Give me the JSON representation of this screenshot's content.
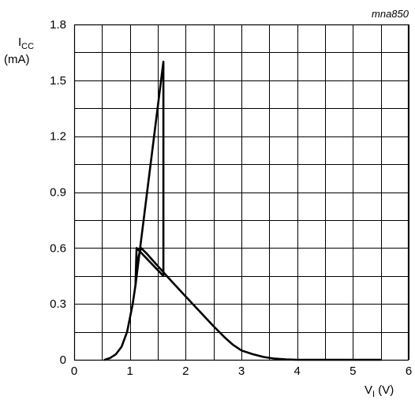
{
  "chart_data": {
    "type": "line",
    "figure_code": "mna850",
    "ylabel": {
      "main": "I",
      "sub": "CC",
      "unit": "(mA)"
    },
    "xlabel": {
      "main": "V",
      "sub": "I",
      "unit": "(V)"
    },
    "xlim": [
      0,
      6
    ],
    "ylim": [
      0,
      1.8
    ],
    "x_ticks": [
      0,
      1,
      2,
      3,
      4,
      5,
      6
    ],
    "y_ticks": [
      0,
      0.3,
      0.6,
      0.9,
      1.2,
      1.5,
      1.8
    ],
    "x_tick_labels": [
      "0",
      "1",
      "2",
      "3",
      "4",
      "5",
      "6"
    ],
    "y_tick_labels": [
      "0",
      "0.3",
      "0.6",
      "0.9",
      "1.2",
      "1.5",
      "1.8"
    ],
    "grid": true,
    "grid_minor": {
      "x_step": 0.5,
      "y_step": 0.15
    },
    "line_color": "#000000",
    "series": [
      {
        "values_xy": [
          [
            0.55,
            0.0
          ],
          [
            0.65,
            0.01
          ],
          [
            0.75,
            0.03
          ],
          [
            0.85,
            0.07
          ],
          [
            0.95,
            0.15
          ],
          [
            1.05,
            0.3
          ],
          [
            1.1,
            0.4
          ],
          [
            1.15,
            0.55
          ],
          [
            1.2,
            0.6
          ],
          [
            1.3,
            0.57
          ],
          [
            1.45,
            0.52
          ],
          [
            1.6,
            0.47
          ],
          [
            1.75,
            0.42
          ],
          [
            2.0,
            0.34
          ],
          [
            2.25,
            0.26
          ],
          [
            2.5,
            0.18
          ],
          [
            2.7,
            0.12
          ],
          [
            2.85,
            0.08
          ],
          [
            3.0,
            0.05
          ],
          [
            3.2,
            0.03
          ],
          [
            3.4,
            0.015
          ],
          [
            3.6,
            0.006
          ],
          [
            3.8,
            0.002
          ],
          [
            4.0,
            0.0
          ],
          [
            5.5,
            0.0
          ]
        ]
      },
      {
        "values_xy": [
          [
            1.1,
            0.4
          ],
          [
            1.12,
            0.6
          ],
          [
            1.6,
            0.45
          ],
          [
            1.6,
            1.6
          ],
          [
            1.1,
            0.4
          ]
        ]
      }
    ]
  }
}
